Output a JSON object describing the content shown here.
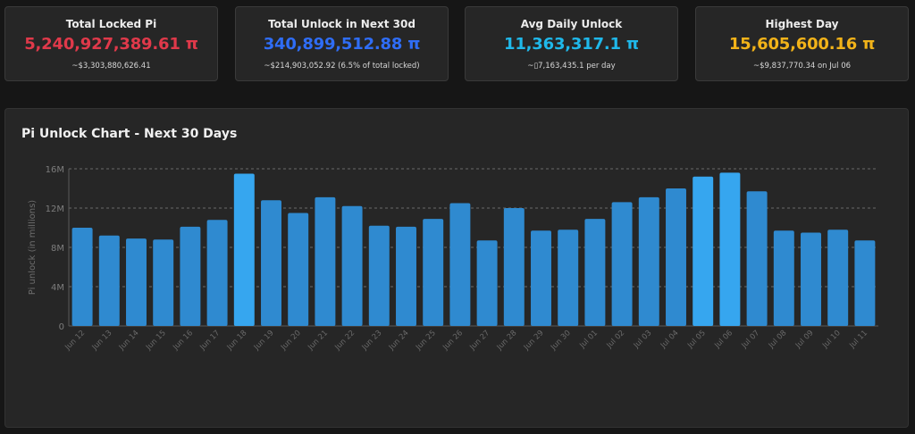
{
  "stats": [
    {
      "label": "Total Locked Pi",
      "value": "5,240,927,389.61 π",
      "sub": "~$3,303,880,626.41",
      "color": "#e0394a"
    },
    {
      "label": "Total Unlock in Next 30d",
      "value": "340,899,512.88 π",
      "sub": "~$214,903,052.92 (6.5% of total locked)",
      "color": "#2f6df6"
    },
    {
      "label": "Avg Daily Unlock",
      "value": "11,363,317.1 π",
      "sub": "~▯7,163,435.1 per day",
      "color": "#1fb8ea"
    },
    {
      "label": "Highest Day",
      "value": "15,605,600.16 π",
      "sub": "~$9,837,770.34 on Jul 06",
      "color": "#f2b319"
    }
  ],
  "chart_title": "Pi Unlock Chart - Next 30 Days",
  "chart_data": {
    "type": "bar",
    "title": "Pi Unlock Chart - Next 30 Days",
    "xlabel": "",
    "ylabel": "Pi unlock (in millions)",
    "ylim": [
      0,
      16000000
    ],
    "yticks": [
      0,
      4000000,
      8000000,
      12000000,
      16000000
    ],
    "ytick_labels": [
      "0",
      "4M",
      "8M",
      "12M",
      "16M"
    ],
    "grid": true,
    "highlight_color": "#36a6ef",
    "bar_color": "#2f8ad0",
    "categories": [
      "Jun 12",
      "Jun 13",
      "Jun 14",
      "Jun 15",
      "Jun 16",
      "Jun 17",
      "Jun 18",
      "Jun 19",
      "Jun 20",
      "Jun 21",
      "Jun 22",
      "Jun 23",
      "Jun 24",
      "Jun 25",
      "Jun 26",
      "Jun 27",
      "Jun 28",
      "Jun 29",
      "Jun 30",
      "Jul 01",
      "Jul 02",
      "Jul 03",
      "Jul 04",
      "Jul 05",
      "Jul 06",
      "Jul 07",
      "Jul 08",
      "Jul 09",
      "Jul 10",
      "Jul 11"
    ],
    "values": [
      10000000,
      9200000,
      8900000,
      8800000,
      10100000,
      10800000,
      15500000,
      12800000,
      11500000,
      13100000,
      12200000,
      10200000,
      10100000,
      10900000,
      12500000,
      8700000,
      12000000,
      9700000,
      9800000,
      10900000,
      12600000,
      13100000,
      14000000,
      15200000,
      15605600,
      13700000,
      9700000,
      9500000,
      9800000,
      8700000
    ]
  }
}
